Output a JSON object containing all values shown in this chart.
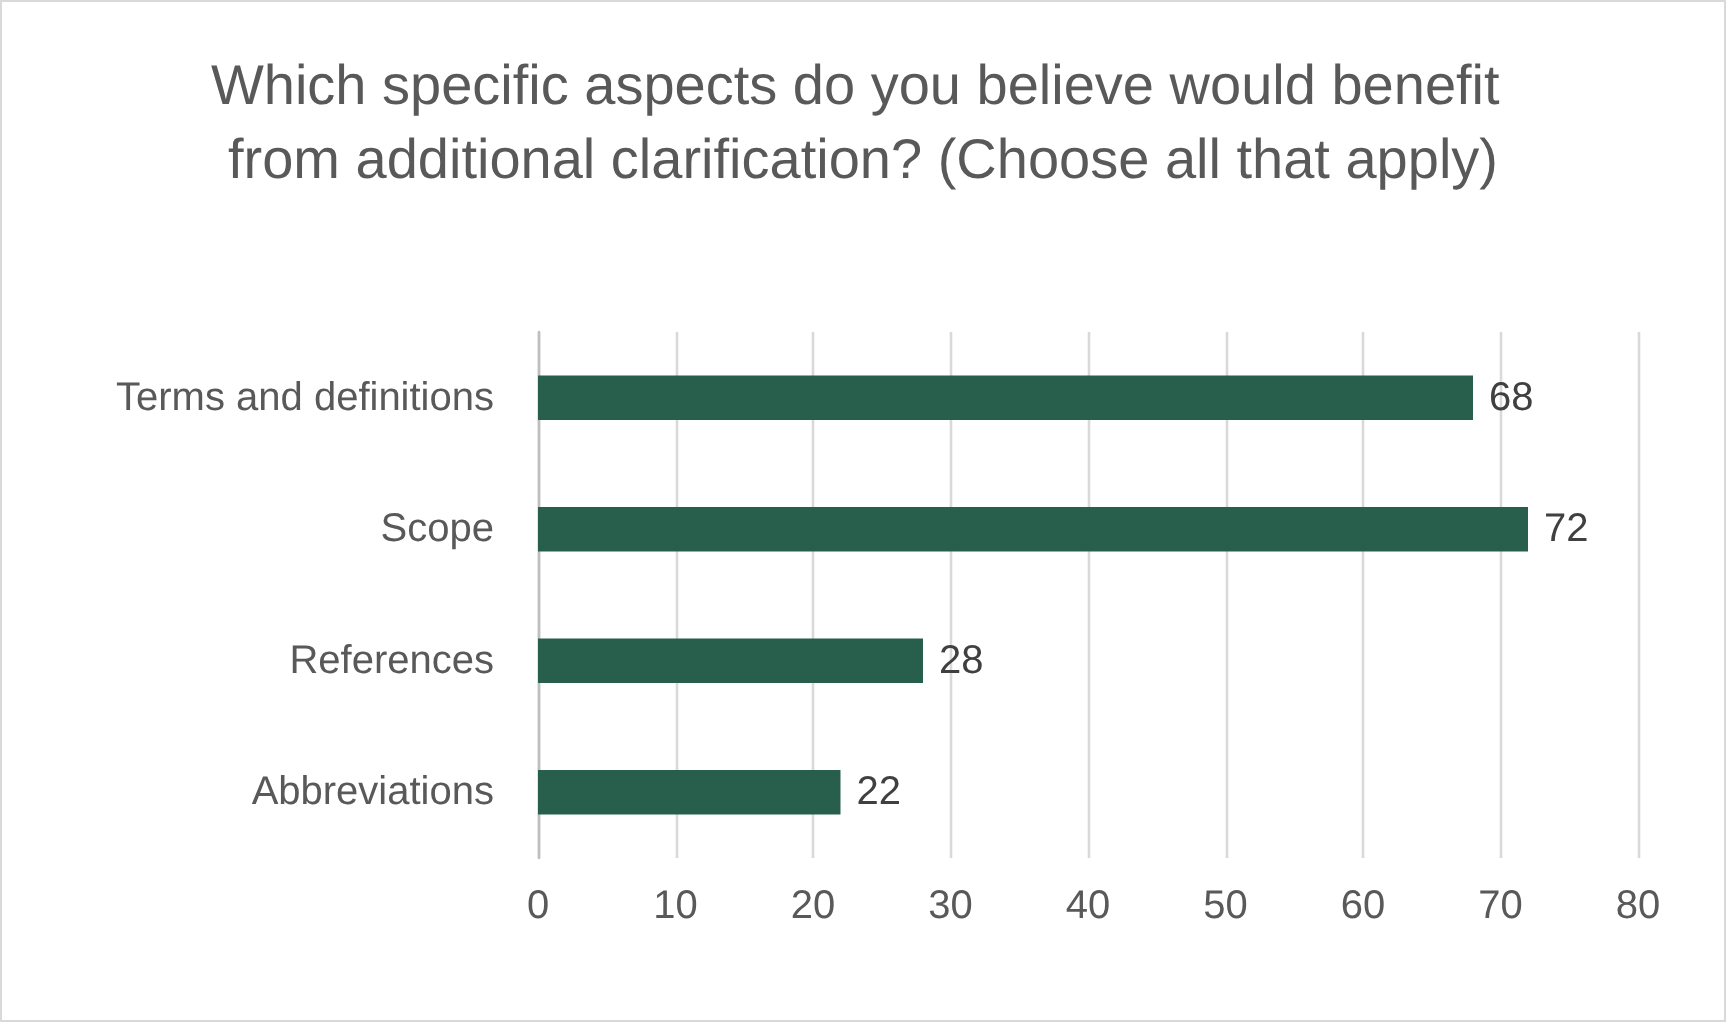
{
  "chart_data": {
    "type": "bar",
    "orientation": "horizontal",
    "title": "Which specific aspects do you believe would benefit from additional clarification? (Choose all that apply)",
    "categories": [
      "Terms and definitions",
      "Scope",
      "References",
      "Abbreviations"
    ],
    "values": [
      68,
      72,
      28,
      22
    ],
    "color": "#275e4c",
    "xlim": [
      0,
      80
    ],
    "xticks": [
      0,
      10,
      20,
      30,
      40,
      50,
      60,
      70,
      80
    ],
    "grid": "x",
    "data_labels": true
  }
}
